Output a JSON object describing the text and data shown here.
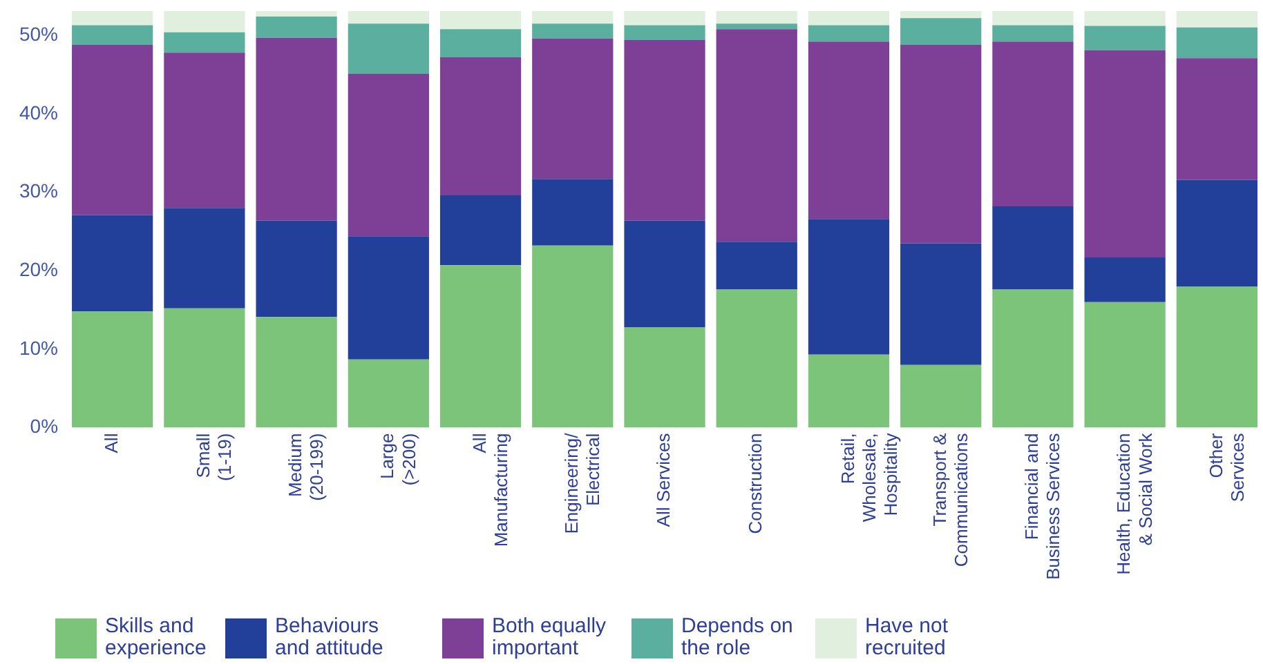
{
  "chart_data": {
    "type": "bar",
    "stacked": true,
    "categories": [
      "All",
      "Small\n(1-19)",
      "Medium\n(20-199)",
      "Large\n(>200)",
      "All\nManufacturing",
      "Engineering/\nElectrical",
      "All Services",
      "Construction",
      "Retail,\nWholesale,\nHospitality",
      "Transport &\nCommunications",
      "Financial and\nBusiness Services",
      "Health, Education\n& Social Work",
      "Other\nServices"
    ],
    "series": [
      {
        "name": "Skills and experience",
        "color": "#7dc47b",
        "values": [
          14.8,
          15.2,
          14.1,
          8.7,
          20.7,
          23.2,
          12.8,
          17.6,
          9.3,
          8.0,
          17.6,
          16.0,
          18.0
        ]
      },
      {
        "name": "Behaviours and attitude",
        "color": "#22409a",
        "values": [
          12.3,
          12.8,
          12.3,
          15.7,
          8.9,
          8.5,
          13.6,
          6.1,
          17.3,
          15.5,
          10.6,
          5.7,
          13.6
        ]
      },
      {
        "name": "Both equally important",
        "color": "#7e3f96",
        "values": [
          21.7,
          19.8,
          23.3,
          20.7,
          17.6,
          17.9,
          23.0,
          27.1,
          22.6,
          25.3,
          21.0,
          26.4,
          15.5
        ]
      },
      {
        "name": "Depends on the role",
        "color": "#5aaf9e",
        "values": [
          2.5,
          2.6,
          2.7,
          6.4,
          3.6,
          1.9,
          1.9,
          0.7,
          2.1,
          3.4,
          2.1,
          3.1,
          3.9
        ]
      },
      {
        "name": "Have not recruited",
        "color": "#e1efdf",
        "values": [
          1.8,
          2.7,
          0.7,
          1.6,
          2.3,
          1.6,
          1.8,
          1.6,
          1.8,
          0.9,
          1.8,
          1.9,
          2.1
        ]
      }
    ],
    "ylim": [
      0,
      53.1
    ],
    "yticks": [
      {
        "value": 0,
        "label": "0%"
      },
      {
        "value": 10,
        "label": "10%"
      },
      {
        "value": 20,
        "label": "20%"
      },
      {
        "value": 30,
        "label": "30%"
      },
      {
        "value": 40,
        "label": "40%"
      },
      {
        "value": 50,
        "label": "50%"
      }
    ],
    "legend": "bottom"
  }
}
